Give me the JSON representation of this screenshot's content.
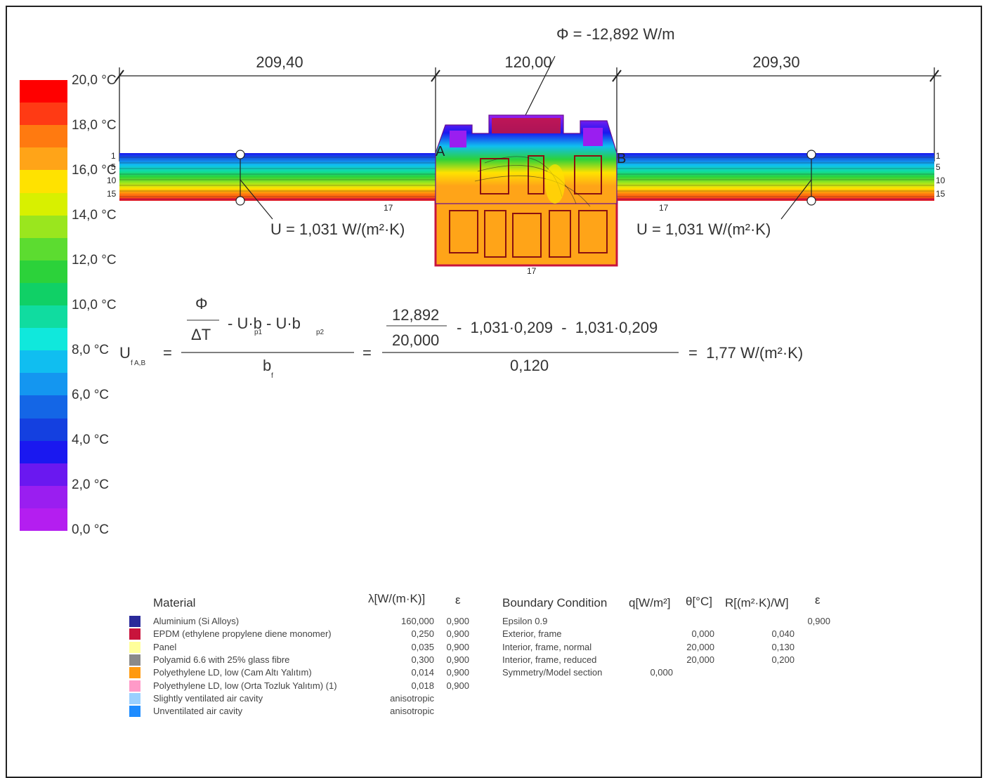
{
  "flux_label": "Φ = -12,892 W/m",
  "dims": [
    "209,40",
    "120,00",
    "209,30"
  ],
  "u_left": "U = 1,031 W/(m²·K)",
  "u_right": "U = 1,031 W/(m²·K)",
  "section_marks": {
    "a": "A",
    "b": "B"
  },
  "isoline_labels_left": [
    "1",
    "5",
    "10",
    "15"
  ],
  "isoline_labels_right": [
    "1",
    "5",
    "10",
    "15"
  ],
  "edge_marks": [
    "17",
    "17",
    "17"
  ],
  "color_scale": {
    "labels": [
      "20,0 °C",
      "18,0 °C",
      "16,0 °C",
      "14,0 °C",
      "12,0 °C",
      "10,0 °C",
      "8,0 °C",
      "6,0 °C",
      "4,0 °C",
      "2,0 °C",
      "0,0 °C"
    ],
    "colors": [
      "#ff0000",
      "#ff3a14",
      "#ff7a10",
      "#ffa418",
      "#ffe200",
      "#d8f000",
      "#9ae61e",
      "#5cdc30",
      "#2cd23a",
      "#10d066",
      "#10dca0",
      "#10e8dc",
      "#10bef0",
      "#1496f0",
      "#1466e6",
      "#1440e0",
      "#1a18f0",
      "#6a18f0",
      "#9a1ef0",
      "#b41ef0"
    ]
  },
  "formula": {
    "lhs": "U",
    "lhs_sub": "f A,B",
    "phi": "Φ",
    "delta_t": "ΔT",
    "minus_terms": "- U·b - U·b",
    "sub_p1": "p1",
    "sub_p2": "p2",
    "bf": "b",
    "bf_sub": "f",
    "num_top": "12,892",
    "num_bottom": "20,000",
    "num_rest": "-  1,031·0,209  -  1,031·0,209",
    "denominator": "0,120",
    "result": "=  1,77 W/(m²·K)",
    "eq": "="
  },
  "materials": {
    "header": "Material",
    "lambda_header": "λ[W/(m·K)]",
    "eps_header": "ε",
    "rows": [
      {
        "name": "Aluminium (Si Alloys)",
        "lambda": "160,000",
        "eps": "0,900",
        "color": "#2a2a9a"
      },
      {
        "name": "EPDM (ethylene propylene diene monomer)",
        "lambda": "0,250",
        "eps": "0,900",
        "color": "#c8143c"
      },
      {
        "name": "Panel",
        "lambda": "0,035",
        "eps": "0,900",
        "color": "#ffff9a"
      },
      {
        "name": "Polyamid 6.6 with 25% glass fibre",
        "lambda": "0,300",
        "eps": "0,900",
        "color": "#8a8a8a"
      },
      {
        "name": "Polyethylene LD, low (Cam Altı Yalıtım)",
        "lambda": "0,014",
        "eps": "0,900",
        "color": "#ff9a10"
      },
      {
        "name": "Polyethylene LD, low (Orta Tozluk Yalıtım) (1)",
        "lambda": "0,018",
        "eps": "0,900",
        "color": "#ff9ac8"
      },
      {
        "name": "Slightly ventilated air cavity",
        "lambda": "anisotropic",
        "eps": "",
        "color": "#9ad0ff"
      },
      {
        "name": "Unventilated air cavity",
        "lambda": "anisotropic",
        "eps": "",
        "color": "#1e8cff"
      }
    ]
  },
  "boundary": {
    "header": "Boundary Condition",
    "q_header": "q[W/m²]",
    "theta_header": "θ[°C]",
    "r_header": "R[(m²·K)/W]",
    "eps_header": "ε",
    "rows": [
      {
        "name": "Epsilon 0.9",
        "q": "",
        "theta": "",
        "r": "",
        "eps": "0,900"
      },
      {
        "name": "Exterior, frame",
        "q": "",
        "theta": "0,000",
        "r": "0,040",
        "eps": ""
      },
      {
        "name": "Interior, frame, normal",
        "q": "",
        "theta": "20,000",
        "r": "0,130",
        "eps": ""
      },
      {
        "name": "Interior, frame, reduced",
        "q": "",
        "theta": "20,000",
        "r": "0,200",
        "eps": ""
      },
      {
        "name": "Symmetry/Model section",
        "q": "0,000",
        "theta": "",
        "r": "",
        "eps": ""
      }
    ]
  }
}
